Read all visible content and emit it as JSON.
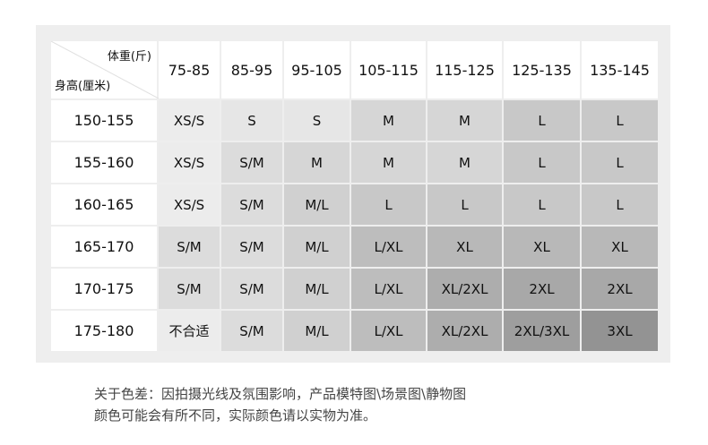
{
  "corner": {
    "weight_label": "体重(斤)",
    "height_label": "身高(厘米)"
  },
  "weights": [
    "75-85",
    "85-95",
    "95-105",
    "105-115",
    "115-125",
    "125-135",
    "135-145"
  ],
  "rows": [
    {
      "height": "150-155",
      "sizes": [
        "XS/S",
        "S",
        "S",
        "M",
        "M",
        "L",
        "L"
      ]
    },
    {
      "height": "155-160",
      "sizes": [
        "XS/S",
        "S/M",
        "M",
        "M",
        "M",
        "L",
        "L"
      ]
    },
    {
      "height": "160-165",
      "sizes": [
        "XS/S",
        "S/M",
        "M/L",
        "L",
        "L",
        "L",
        "L"
      ]
    },
    {
      "height": "165-170",
      "sizes": [
        "S/M",
        "S/M",
        "M/L",
        "L/XL",
        "XL",
        "XL",
        "XL"
      ]
    },
    {
      "height": "170-175",
      "sizes": [
        "S/M",
        "S/M",
        "M/L",
        "L/XL",
        "XL/2XL",
        "2XL",
        "2XL"
      ]
    },
    {
      "height": "175-180",
      "sizes": [
        "不合适",
        "S/M",
        "M/L",
        "L/XL",
        "XL/2XL",
        "2XL/3XL",
        "3XL"
      ]
    }
  ],
  "size_colors": {
    "XS/S": "#ececec",
    "不合适": "#ececec",
    "S": "#e6e6e6",
    "S/M": "#dcdcdc",
    "M": "#d6d6d6",
    "M/L": "#d0d0d0",
    "L": "#c8c8c8",
    "L/XL": "#bdbdbd",
    "XL": "#b8b8b8",
    "XL/2XL": "#adadad",
    "2XL": "#a8a8a8",
    "2XL/3XL": "#9e9e9e",
    "3XL": "#939393"
  },
  "note": {
    "line1": "关于色差：因拍摄光线及氛围影响，产品模特图\\场景图\\静物图",
    "line2": "颜色可能会有所不同，实际颜色请以实物为准。"
  }
}
